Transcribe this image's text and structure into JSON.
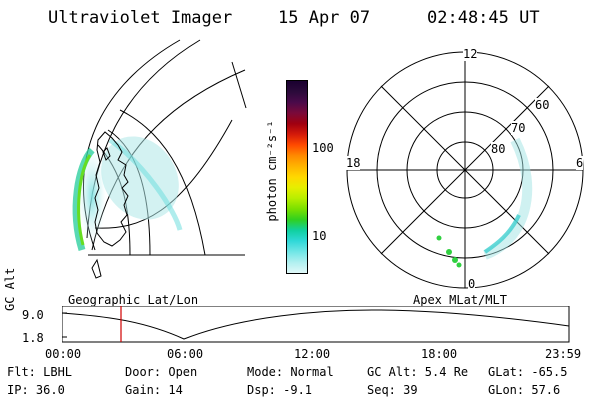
{
  "header": {
    "title": "Ultraviolet Imager",
    "date": "15 Apr 07",
    "time": "02:48:45 UT"
  },
  "left_panel": {
    "caption": "Geographic Lat/Lon"
  },
  "colorbar": {
    "unit_label": "photon cm⁻²s⁻¹",
    "tick_labels": [
      "100",
      "10"
    ],
    "colors": [
      "#1a0030",
      "#2b0a3a",
      "#4a0a4a",
      "#7a0a3a",
      "#a00010",
      "#d41a0a",
      "#ff4a00",
      "#ff8a00",
      "#ffb400",
      "#ffd800",
      "#e6ee00",
      "#b8ee00",
      "#7ae000",
      "#30d020",
      "#10d0a0",
      "#30d8d8",
      "#70e6e6",
      "#b0f0f0",
      "#e0f8f8"
    ]
  },
  "right_panel": {
    "caption": "Apex MLat/MLT",
    "mlt_labels": {
      "top": "12",
      "left": "18",
      "right": "6",
      "bottom": "0"
    },
    "lat_labels": [
      "60",
      "70",
      "80"
    ]
  },
  "altitude_plot": {
    "ylabel": "GC Alt",
    "y_ticks": [
      "9.0",
      "1.8"
    ],
    "x_ticks": [
      "00:00",
      "06:00",
      "12:00",
      "18:00",
      "23:59"
    ],
    "marker_time": "02:48:45"
  },
  "footer": {
    "flt": "Flt: LBHL",
    "ip": "IP: 36.0",
    "door": "Door: Open",
    "gain": "Gain: 14",
    "mode": "Mode: Normal",
    "dsp": "Dsp:   -9.1",
    "gc_alt": "GC Alt: 5.4 Re",
    "seq": "Seq: 39",
    "glat": "GLat: -65.5",
    "glon": "GLon:  57.6"
  }
}
